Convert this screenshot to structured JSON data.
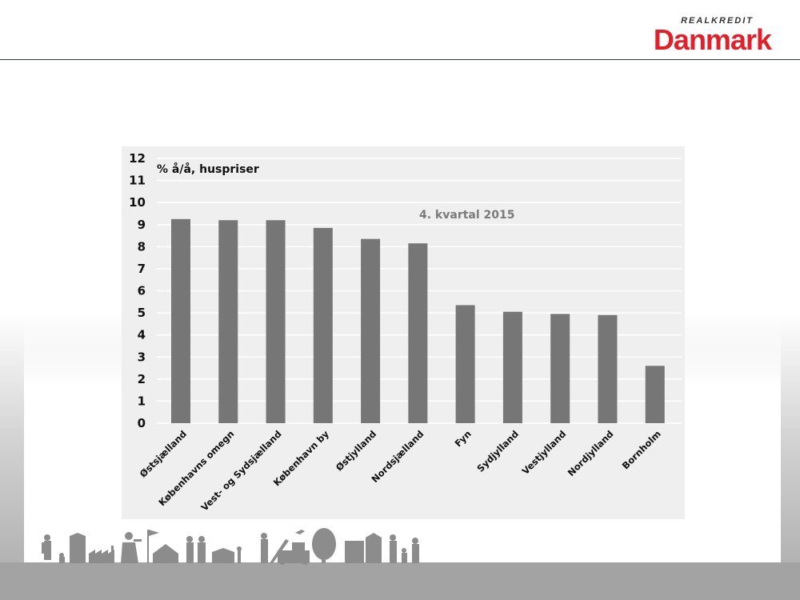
{
  "logo": {
    "top_text": "REALKREDIT",
    "main_text": "Danmark",
    "brand_color": "#e0202a"
  },
  "colors": {
    "bar": "#767676",
    "chart_bg": "#efefef",
    "grid": "#ffffff"
  },
  "chart_data": {
    "type": "bar",
    "title": "",
    "ylabel": "% å/å, huspriser",
    "annotation": "4. kvartal 2015",
    "categories": [
      "Østsjælland",
      "Københavns omegn",
      "Vest- og Sydsjælland",
      "København by",
      "Østjylland",
      "Nordsjælland",
      "Fyn",
      "Sydjylland",
      "Vestjylland",
      "Nordjylland",
      "Bornholm"
    ],
    "values": [
      9.25,
      9.2,
      9.2,
      8.85,
      8.35,
      8.15,
      5.35,
      5.05,
      4.95,
      4.9,
      2.6
    ],
    "yticks": [
      0,
      1,
      2,
      3,
      4,
      5,
      6,
      7,
      8,
      9,
      10,
      11,
      12
    ],
    "ylim": [
      0,
      12
    ],
    "grid": true
  }
}
